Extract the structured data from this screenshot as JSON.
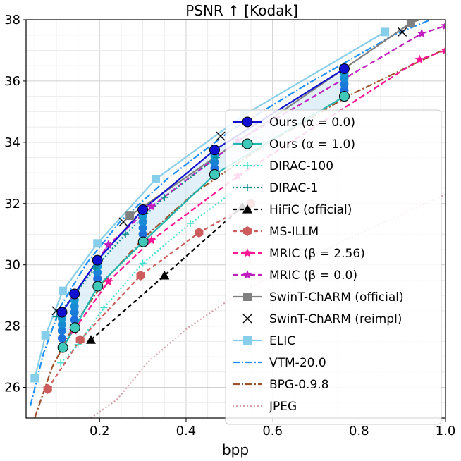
{
  "chart_data": {
    "type": "line",
    "title": "PSNR ↑  [Kodak]",
    "xlabel": "bpp",
    "ylabel": "",
    "xlim": [
      0.03,
      1.0
    ],
    "ylim": [
      25.0,
      38.0
    ],
    "x_ticks": [
      0.2,
      0.4,
      0.6,
      0.8,
      1.0
    ],
    "x_tick_labels": [
      "0.2",
      "0.4",
      "0.6",
      "0.8",
      "1.0"
    ],
    "y_ticks": [
      26,
      28,
      30,
      32,
      34,
      36,
      38
    ],
    "y_tick_labels": [
      "26",
      "28",
      "30",
      "32",
      "34",
      "36",
      "38"
    ],
    "grid": true,
    "legend_position": "right",
    "series": [
      {
        "name": "Ours (α = 0.0)",
        "color": "#1010d0",
        "dash": "",
        "marker": "circle",
        "marker_fill": "#1010d0",
        "x": [
          0.113,
          0.142,
          0.195,
          0.3,
          0.466,
          0.766
        ],
        "y": [
          28.45,
          29.05,
          30.15,
          31.8,
          33.75,
          36.4
        ]
      },
      {
        "name": "Ours (α = 1.0)",
        "color": "#20b8b0",
        "dash": "",
        "marker": "circle",
        "marker_fill": "#40c8b8",
        "x": [
          0.115,
          0.143,
          0.196,
          0.301,
          0.466,
          0.766
        ],
        "y": [
          27.3,
          27.95,
          29.3,
          30.75,
          32.95,
          35.5
        ]
      },
      {
        "name": "DIRAC-100",
        "color": "#40e0d0",
        "dash": "2,3",
        "marker": "plus",
        "x": [
          0.11,
          0.15,
          0.21,
          0.3,
          0.41,
          0.53
        ],
        "y": [
          26.8,
          27.4,
          28.6,
          30.05,
          31.35,
          32.6
        ]
      },
      {
        "name": "DIRAC-1",
        "color": "#008b8b",
        "dash": "2,3",
        "marker": "plus",
        "x": [
          0.1,
          0.14,
          0.19,
          0.26,
          0.35,
          0.47
        ],
        "y": [
          28.3,
          29.0,
          29.9,
          31.0,
          32.2,
          33.5
        ]
      },
      {
        "name": "HiFiC (official)",
        "color": "#000000",
        "dash": "6,4",
        "marker": "triangle",
        "x": [
          0.18,
          0.35,
          0.53
        ],
        "y": [
          27.55,
          29.65,
          31.9
        ]
      },
      {
        "name": "MS-ILLM",
        "color": "#cd5c5c",
        "dash": "6,4",
        "marker": "hexagon",
        "x": [
          0.08,
          0.155,
          0.295,
          0.43,
          0.55
        ],
        "y": [
          25.95,
          27.55,
          29.65,
          31.05,
          32.0
        ]
      },
      {
        "name": "MRIC (β = 2.56)",
        "color": "#ff1493",
        "dash": "8,4",
        "marker": "star",
        "x": [
          0.14,
          0.22,
          0.32,
          0.52,
          0.94,
          1.0
        ],
        "y": [
          27.85,
          29.45,
          30.8,
          32.9,
          36.7,
          37.0
        ]
      },
      {
        "name": "MRIC (β = 0.0)",
        "color": "#c020c0",
        "dash": "8,4",
        "marker": "star",
        "x": [
          0.14,
          0.22,
          0.32,
          0.52,
          0.945,
          1.0
        ],
        "y": [
          29.0,
          30.65,
          31.9,
          34.05,
          37.55,
          37.8
        ]
      },
      {
        "name": "SwinT-ChARM (official)",
        "color": "#808080",
        "dash": "",
        "marker": "square",
        "x": [
          0.27,
          0.92,
          1.0
        ],
        "y": [
          31.6,
          37.9,
          38.3
        ]
      },
      {
        "name": "SwinT-ChARM (reimpl)",
        "color": "#000000",
        "dash": "none",
        "marker": "x",
        "x": [
          0.1,
          0.255,
          0.48,
          0.9
        ],
        "y": [
          28.5,
          31.4,
          34.2,
          37.6
        ]
      },
      {
        "name": "ELIC",
        "color": "#87ceeb",
        "dash": "",
        "marker": "square",
        "x": [
          0.05,
          0.075,
          0.115,
          0.195,
          0.33,
          0.535,
          0.86
        ],
        "y": [
          26.3,
          27.7,
          29.15,
          30.7,
          32.8,
          34.9,
          37.6
        ]
      },
      {
        "name": "VTM-20.0",
        "color": "#1e90ff",
        "dash": "10,3,2,3",
        "marker": "none",
        "x": [
          0.04,
          0.07,
          0.11,
          0.17,
          0.25,
          0.36,
          0.5,
          0.68,
          0.88,
          1.0
        ],
        "y": [
          25.4,
          27.1,
          28.65,
          30.05,
          31.45,
          32.85,
          34.35,
          35.9,
          37.5,
          38.2
        ]
      },
      {
        "name": "BPG-0.9.8",
        "color": "#a0522d",
        "dash": "10,3,2,3",
        "marker": "none",
        "x": [
          0.05,
          0.09,
          0.14,
          0.21,
          0.3,
          0.42,
          0.58,
          0.78,
          1.0
        ],
        "y": [
          25.0,
          26.65,
          28.0,
          29.45,
          30.85,
          32.35,
          33.9,
          35.55,
          37.05
        ]
      },
      {
        "name": "JPEG",
        "color": "#d4a0a8",
        "dash": "2,3",
        "marker": "none",
        "x": [
          0.18,
          0.24,
          0.31,
          0.4,
          0.52,
          0.66,
          0.82,
          1.0
        ],
        "y": [
          25.0,
          25.6,
          26.8,
          27.9,
          29.05,
          30.1,
          31.15,
          32.3
        ]
      }
    ],
    "ours_intermediate_points": [
      {
        "x": 0.113,
        "y": [
          27.6,
          27.85,
          28.05,
          28.25
        ]
      },
      {
        "x": 0.142,
        "y": [
          28.2,
          28.45,
          28.65,
          28.85
        ]
      },
      {
        "x": 0.195,
        "y": [
          29.55,
          29.75,
          29.95
        ]
      },
      {
        "x": 0.3,
        "y": [
          31.0,
          31.2,
          31.4,
          31.6
        ]
      },
      {
        "x": 0.466,
        "y": [
          33.15,
          33.35,
          33.55
        ]
      },
      {
        "x": 0.766,
        "y": [
          35.7,
          35.9,
          36.1,
          36.25
        ]
      }
    ],
    "shaded_band": {
      "color": "#cfe6f7",
      "x": [
        0.113,
        0.142,
        0.195,
        0.3,
        0.466,
        0.766
      ],
      "y_upper": [
        28.45,
        29.05,
        30.15,
        31.8,
        33.75,
        36.4
      ],
      "y_lower": [
        27.3,
        27.95,
        29.3,
        30.75,
        32.95,
        35.5
      ]
    }
  }
}
